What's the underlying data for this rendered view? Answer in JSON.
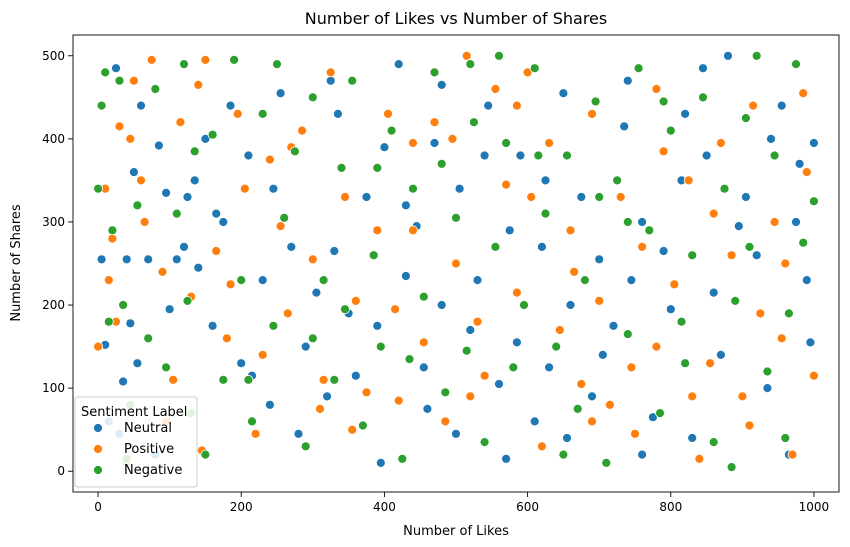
{
  "chart_data": {
    "type": "scatter",
    "title": "Number of Likes vs Number of Shares",
    "xlabel": "Number of Likes",
    "ylabel": "Number of Shares",
    "xlim": [
      -35,
      1035
    ],
    "ylim": [
      -25,
      525
    ],
    "xticks": [
      0,
      200,
      400,
      600,
      800,
      1000
    ],
    "yticks": [
      0,
      100,
      200,
      300,
      400,
      500
    ],
    "grid": false,
    "legend": {
      "title": "Sentiment Label",
      "placement": "bottom-left"
    },
    "series": [
      {
        "name": "Neutral",
        "color": "#1f77b4",
        "points": [
          [
            5,
            255
          ],
          [
            10,
            152
          ],
          [
            25,
            485
          ],
          [
            30,
            45
          ],
          [
            35,
            108
          ],
          [
            40,
            255
          ],
          [
            45,
            178
          ],
          [
            55,
            130
          ],
          [
            60,
            440
          ],
          [
            70,
            255
          ],
          [
            85,
            392
          ],
          [
            95,
            335
          ],
          [
            100,
            195
          ],
          [
            110,
            255
          ],
          [
            125,
            330
          ],
          [
            135,
            350
          ],
          [
            140,
            245
          ],
          [
            150,
            400
          ],
          [
            160,
            175
          ],
          [
            175,
            300
          ],
          [
            185,
            440
          ],
          [
            200,
            130
          ],
          [
            215,
            115
          ],
          [
            230,
            230
          ],
          [
            245,
            340
          ],
          [
            255,
            455
          ],
          [
            270,
            270
          ],
          [
            290,
            150
          ],
          [
            305,
            215
          ],
          [
            320,
            90
          ],
          [
            335,
            430
          ],
          [
            350,
            190
          ],
          [
            360,
            115
          ],
          [
            375,
            330
          ],
          [
            390,
            175
          ],
          [
            400,
            390
          ],
          [
            420,
            490
          ],
          [
            430,
            235
          ],
          [
            445,
            295
          ],
          [
            460,
            75
          ],
          [
            470,
            395
          ],
          [
            480,
            200
          ],
          [
            500,
            45
          ],
          [
            505,
            340
          ],
          [
            520,
            170
          ],
          [
            530,
            230
          ],
          [
            545,
            440
          ],
          [
            560,
            105
          ],
          [
            575,
            290
          ],
          [
            590,
            380
          ],
          [
            610,
            60
          ],
          [
            620,
            270
          ],
          [
            630,
            125
          ],
          [
            650,
            455
          ],
          [
            660,
            200
          ],
          [
            675,
            330
          ],
          [
            690,
            90
          ],
          [
            700,
            255
          ],
          [
            720,
            175
          ],
          [
            735,
            415
          ],
          [
            745,
            230
          ],
          [
            760,
            300
          ],
          [
            775,
            65
          ],
          [
            790,
            265
          ],
          [
            800,
            195
          ],
          [
            815,
            350
          ],
          [
            830,
            40
          ],
          [
            845,
            485
          ],
          [
            860,
            215
          ],
          [
            880,
            500
          ],
          [
            895,
            295
          ],
          [
            905,
            330
          ],
          [
            920,
            260
          ],
          [
            940,
            400
          ],
          [
            955,
            440
          ],
          [
            965,
            20
          ],
          [
            980,
            370
          ],
          [
            995,
            155
          ],
          [
            1000,
            395
          ],
          [
            15,
            60
          ],
          [
            80,
            20
          ],
          [
            165,
            310
          ],
          [
            280,
            45
          ],
          [
            395,
            10
          ],
          [
            480,
            465
          ],
          [
            570,
            15
          ],
          [
            655,
            40
          ],
          [
            740,
            470
          ],
          [
            870,
            140
          ],
          [
            990,
            230
          ],
          [
            50,
            360
          ],
          [
            120,
            270
          ],
          [
            240,
            80
          ],
          [
            330,
            265
          ],
          [
            455,
            125
          ],
          [
            585,
            155
          ],
          [
            705,
            140
          ],
          [
            820,
            430
          ],
          [
            935,
            100
          ],
          [
            210,
            380
          ],
          [
            325,
            470
          ],
          [
            430,
            320
          ],
          [
            540,
            380
          ],
          [
            625,
            350
          ],
          [
            760,
            20
          ],
          [
            850,
            380
          ],
          [
            975,
            300
          ]
        ]
      },
      {
        "name": "Positive",
        "color": "#ff7f0e",
        "points": [
          [
            0,
            150
          ],
          [
            10,
            340
          ],
          [
            15,
            230
          ],
          [
            20,
            280
          ],
          [
            30,
            415
          ],
          [
            40,
            10
          ],
          [
            50,
            470
          ],
          [
            60,
            350
          ],
          [
            65,
            300
          ],
          [
            75,
            495
          ],
          [
            90,
            240
          ],
          [
            105,
            110
          ],
          [
            115,
            420
          ],
          [
            130,
            210
          ],
          [
            145,
            25
          ],
          [
            150,
            495
          ],
          [
            165,
            265
          ],
          [
            180,
            160
          ],
          [
            195,
            430
          ],
          [
            205,
            340
          ],
          [
            220,
            45
          ],
          [
            240,
            375
          ],
          [
            255,
            295
          ],
          [
            265,
            190
          ],
          [
            285,
            410
          ],
          [
            300,
            255
          ],
          [
            315,
            110
          ],
          [
            325,
            480
          ],
          [
            345,
            330
          ],
          [
            360,
            205
          ],
          [
            375,
            95
          ],
          [
            390,
            290
          ],
          [
            405,
            430
          ],
          [
            420,
            85
          ],
          [
            440,
            395
          ],
          [
            455,
            155
          ],
          [
            470,
            420
          ],
          [
            485,
            60
          ],
          [
            500,
            250
          ],
          [
            515,
            500
          ],
          [
            530,
            180
          ],
          [
            540,
            115
          ],
          [
            555,
            460
          ],
          [
            570,
            345
          ],
          [
            585,
            215
          ],
          [
            600,
            480
          ],
          [
            620,
            30
          ],
          [
            630,
            395
          ],
          [
            645,
            170
          ],
          [
            660,
            290
          ],
          [
            675,
            105
          ],
          [
            690,
            430
          ],
          [
            700,
            205
          ],
          [
            715,
            80
          ],
          [
            730,
            330
          ],
          [
            750,
            45
          ],
          [
            760,
            270
          ],
          [
            780,
            150
          ],
          [
            790,
            385
          ],
          [
            805,
            225
          ],
          [
            825,
            350
          ],
          [
            840,
            15
          ],
          [
            855,
            130
          ],
          [
            870,
            395
          ],
          [
            885,
            260
          ],
          [
            900,
            90
          ],
          [
            915,
            440
          ],
          [
            925,
            190
          ],
          [
            945,
            300
          ],
          [
            955,
            160
          ],
          [
            970,
            20
          ],
          [
            985,
            455
          ],
          [
            1000,
            115
          ],
          [
            25,
            180
          ],
          [
            95,
            60
          ],
          [
            185,
            225
          ],
          [
            270,
            390
          ],
          [
            355,
            50
          ],
          [
            440,
            290
          ],
          [
            520,
            90
          ],
          [
            605,
            330
          ],
          [
            690,
            60
          ],
          [
            780,
            460
          ],
          [
            860,
            310
          ],
          [
            960,
            250
          ],
          [
            45,
            400
          ],
          [
            140,
            465
          ],
          [
            230,
            140
          ],
          [
            310,
            75
          ],
          [
            415,
            195
          ],
          [
            495,
            400
          ],
          [
            585,
            440
          ],
          [
            665,
            240
          ],
          [
            745,
            125
          ],
          [
            830,
            90
          ],
          [
            910,
            55
          ],
          [
            990,
            360
          ]
        ]
      },
      {
        "name": "Negative",
        "color": "#2ca02c",
        "points": [
          [
            0,
            340
          ],
          [
            5,
            440
          ],
          [
            10,
            480
          ],
          [
            15,
            180
          ],
          [
            20,
            290
          ],
          [
            35,
            200
          ],
          [
            45,
            80
          ],
          [
            55,
            320
          ],
          [
            70,
            160
          ],
          [
            80,
            460
          ],
          [
            95,
            125
          ],
          [
            110,
            310
          ],
          [
            125,
            205
          ],
          [
            135,
            385
          ],
          [
            150,
            20
          ],
          [
            160,
            405
          ],
          [
            175,
            110
          ],
          [
            190,
            495
          ],
          [
            200,
            230
          ],
          [
            215,
            60
          ],
          [
            230,
            430
          ],
          [
            245,
            175
          ],
          [
            260,
            305
          ],
          [
            275,
            385
          ],
          [
            290,
            30
          ],
          [
            300,
            450
          ],
          [
            315,
            230
          ],
          [
            330,
            110
          ],
          [
            340,
            365
          ],
          [
            355,
            470
          ],
          [
            370,
            55
          ],
          [
            385,
            260
          ],
          [
            395,
            150
          ],
          [
            410,
            410
          ],
          [
            425,
            15
          ],
          [
            440,
            340
          ],
          [
            455,
            210
          ],
          [
            470,
            480
          ],
          [
            485,
            95
          ],
          [
            500,
            305
          ],
          [
            515,
            145
          ],
          [
            525,
            420
          ],
          [
            540,
            35
          ],
          [
            555,
            270
          ],
          [
            570,
            395
          ],
          [
            580,
            125
          ],
          [
            595,
            200
          ],
          [
            610,
            485
          ],
          [
            625,
            310
          ],
          [
            640,
            150
          ],
          [
            655,
            380
          ],
          [
            670,
            75
          ],
          [
            680,
            230
          ],
          [
            695,
            445
          ],
          [
            710,
            10
          ],
          [
            725,
            350
          ],
          [
            740,
            165
          ],
          [
            755,
            485
          ],
          [
            770,
            290
          ],
          [
            785,
            70
          ],
          [
            800,
            410
          ],
          [
            815,
            180
          ],
          [
            830,
            260
          ],
          [
            845,
            450
          ],
          [
            860,
            35
          ],
          [
            875,
            340
          ],
          [
            890,
            205
          ],
          [
            905,
            425
          ],
          [
            920,
            500
          ],
          [
            935,
            120
          ],
          [
            945,
            380
          ],
          [
            960,
            40
          ],
          [
            975,
            490
          ],
          [
            985,
            275
          ],
          [
            1000,
            325
          ],
          [
            30,
            470
          ],
          [
            120,
            490
          ],
          [
            210,
            110
          ],
          [
            300,
            160
          ],
          [
            390,
            365
          ],
          [
            480,
            370
          ],
          [
            560,
            500
          ],
          [
            650,
            20
          ],
          [
            740,
            300
          ],
          [
            820,
            130
          ],
          [
            910,
            270
          ],
          [
            40,
            15
          ],
          [
            130,
            70
          ],
          [
            250,
            490
          ],
          [
            345,
            195
          ],
          [
            435,
            135
          ],
          [
            520,
            490
          ],
          [
            615,
            380
          ],
          [
            700,
            330
          ],
          [
            790,
            445
          ],
          [
            885,
            5
          ],
          [
            965,
            190
          ]
        ]
      }
    ]
  }
}
